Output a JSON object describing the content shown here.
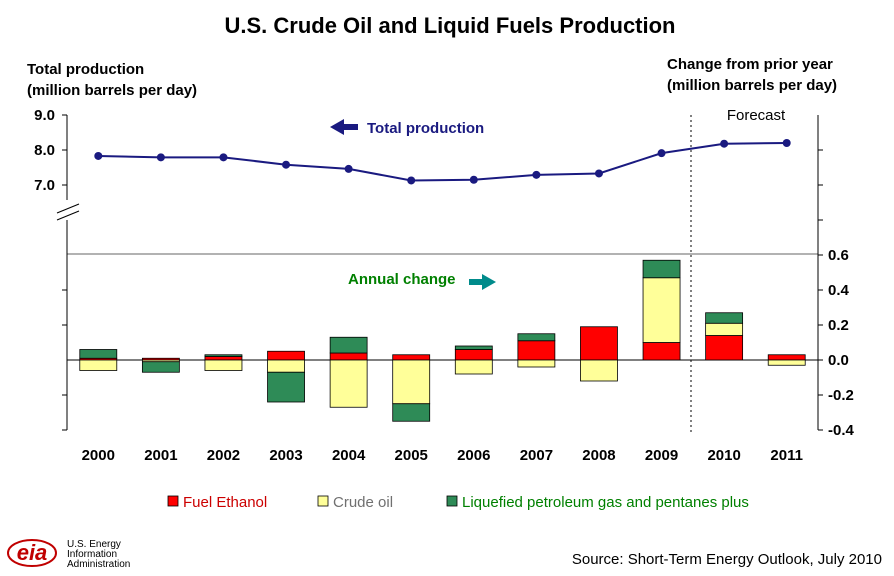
{
  "chart_data": {
    "type": "bar",
    "title": "U.S. Crude Oil and Liquid Fuels Production",
    "left_axis_label_line1": "Total production",
    "left_axis_label_line2": "(million barrels per day)",
    "right_axis_label_line1": "Change from  prior year",
    "right_axis_label_line2": "(million barrels per day)",
    "forecast_label": "Forecast",
    "total_annotation": "Total production",
    "change_annotation": "Annual change",
    "categories": [
      "2000",
      "2001",
      "2002",
      "2003",
      "2004",
      "2005",
      "2006",
      "2007",
      "2008",
      "2009",
      "2010",
      "2011"
    ],
    "forecast_starts_after": "2009",
    "total_production": {
      "name": "Total production",
      "values": [
        7.83,
        7.79,
        7.79,
        7.58,
        7.46,
        7.13,
        7.15,
        7.29,
        7.33,
        7.91,
        8.18,
        8.2
      ],
      "ylim": [
        6.0,
        9.0
      ],
      "ticks": [
        "7.0",
        "8.0",
        "9.0"
      ],
      "color": "#1a1a80"
    },
    "annual_change": {
      "ylim": [
        -0.4,
        0.6
      ],
      "ticks": [
        "0.6",
        "0.4",
        "0.2",
        "0.0",
        "-0.2",
        "-0.4"
      ],
      "series": [
        {
          "name": "Fuel Ethanol",
          "color": "#ff0000",
          "values": [
            0.01,
            0.01,
            0.02,
            0.05,
            0.04,
            0.03,
            0.06,
            0.11,
            0.19,
            0.1,
            0.14,
            0.03
          ]
        },
        {
          "name": "Crude oil",
          "color": "#ffff99",
          "values": [
            -0.06,
            -0.01,
            -0.06,
            -0.07,
            -0.27,
            -0.25,
            -0.08,
            -0.04,
            -0.12,
            0.37,
            0.07,
            -0.03
          ]
        },
        {
          "name": "Liquefied petroleum gas and pentanes plus",
          "color": "#2e8b57",
          "values": [
            0.05,
            -0.06,
            0.01,
            -0.17,
            0.09,
            -0.1,
            0.02,
            0.04,
            0.0,
            0.1,
            0.06,
            0.0
          ]
        }
      ]
    },
    "legend_placement": "bottom",
    "grid": false
  },
  "source": "Source: Short-Term Energy Outlook, July 2010",
  "logo": {
    "mark": "eia",
    "line1": "U.S. Energy",
    "line2": "Information",
    "line3": "Administration"
  }
}
